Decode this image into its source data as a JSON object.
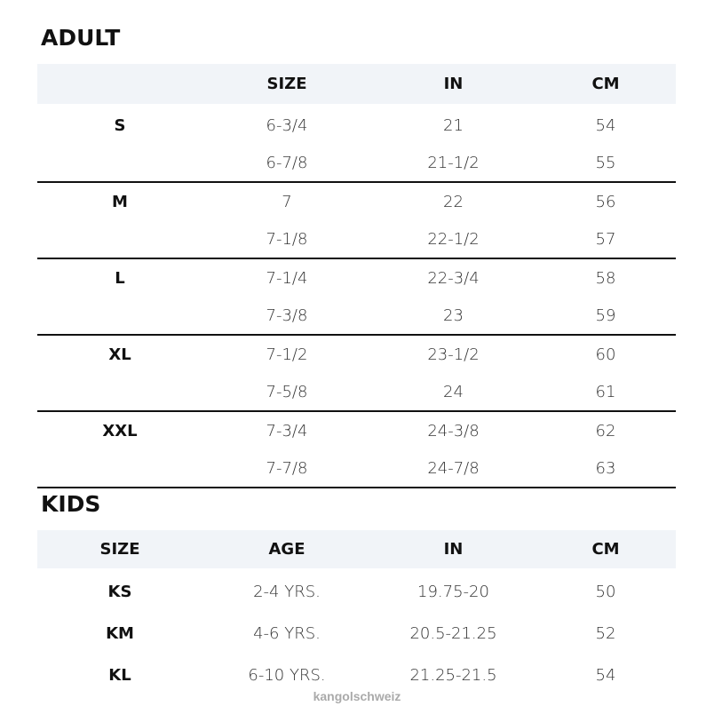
{
  "adult": {
    "title": "ADULT",
    "headers": [
      "",
      "SIZE",
      "IN",
      "CM"
    ],
    "groups": [
      {
        "label": "S",
        "rows": [
          [
            "6-3/4",
            "21",
            "54"
          ],
          [
            "6-7/8",
            "21-1/2",
            "55"
          ]
        ]
      },
      {
        "label": "M",
        "rows": [
          [
            "7",
            "22",
            "56"
          ],
          [
            "7-1/8",
            "22-1/2",
            "57"
          ]
        ]
      },
      {
        "label": "L",
        "rows": [
          [
            "7-1/4",
            "22-3/4",
            "58"
          ],
          [
            "7-3/8",
            "23",
            "59"
          ]
        ]
      },
      {
        "label": "XL",
        "rows": [
          [
            "7-1/2",
            "23-1/2",
            "60"
          ],
          [
            "7-5/8",
            "24",
            "61"
          ]
        ]
      },
      {
        "label": "XXL",
        "rows": [
          [
            "7-3/4",
            "24-3/8",
            "62"
          ],
          [
            "7-7/8",
            "24-7/8",
            "63"
          ]
        ]
      }
    ]
  },
  "kids": {
    "title": "KIDS",
    "headers": [
      "SIZE",
      "AGE",
      "IN",
      "CM"
    ],
    "rows": [
      [
        "KS",
        "2-4 YRS.",
        "19.75-20",
        "50"
      ],
      [
        "KM",
        "4-6 YRS.",
        "20.5-21.25",
        "52"
      ],
      [
        "KL",
        "6-10 YRS.",
        "21.25-21.5",
        "54"
      ]
    ]
  },
  "watermark": "kangolschweiz"
}
